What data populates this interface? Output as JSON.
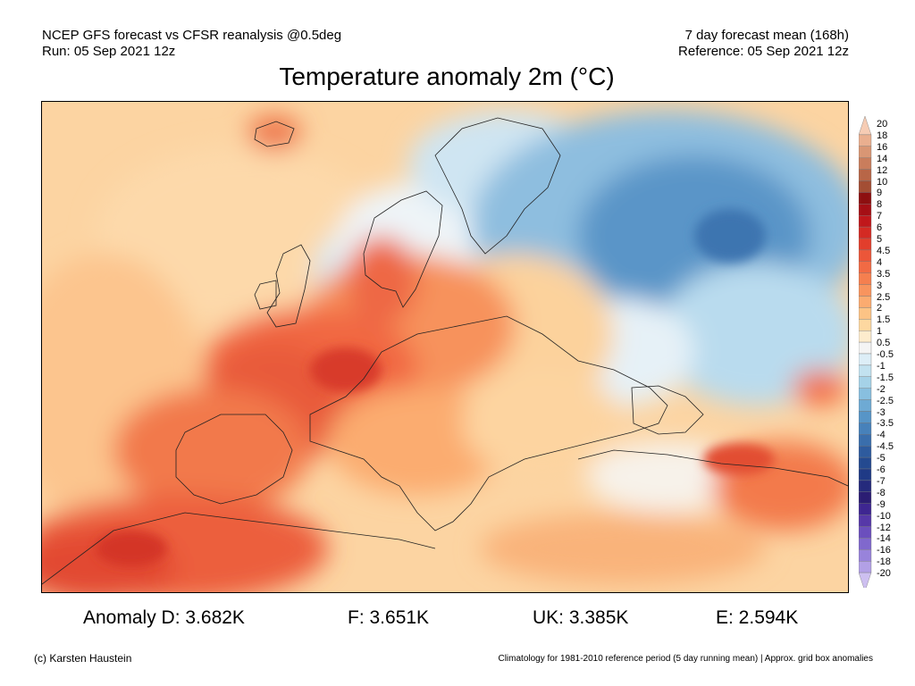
{
  "header": {
    "left_line1": "NCEP GFS forecast vs CFSR reanalysis @0.5deg",
    "left_line2": "Run: 05 Sep 2021 12z",
    "right_line1": "7 day forecast mean (168h)",
    "right_line2": "Reference: 05 Sep 2021 12z"
  },
  "title": "Temperature anomaly 2m (°C)",
  "colorbar": {
    "levels": [
      {
        "label": "20",
        "color": "#f6ccb4"
      },
      {
        "label": "18",
        "color": "#eaaf8f"
      },
      {
        "label": "16",
        "color": "#d99674"
      },
      {
        "label": "14",
        "color": "#c97d5c"
      },
      {
        "label": "12",
        "color": "#b86647"
      },
      {
        "label": "10",
        "color": "#a34e34"
      },
      {
        "label": "9",
        "color": "#8d0f10"
      },
      {
        "label": "8",
        "color": "#a50f15"
      },
      {
        "label": "7",
        "color": "#c0171b"
      },
      {
        "label": "6",
        "color": "#d42a23"
      },
      {
        "label": "5",
        "color": "#e23e2c"
      },
      {
        "label": "4.5",
        "color": "#ec5639"
      },
      {
        "label": "4",
        "color": "#f16a44"
      },
      {
        "label": "3.5",
        "color": "#f57f4f"
      },
      {
        "label": "3",
        "color": "#f8945e"
      },
      {
        "label": "2.5",
        "color": "#fbab70"
      },
      {
        "label": "2",
        "color": "#fcc385"
      },
      {
        "label": "1.5",
        "color": "#fdd8a0"
      },
      {
        "label": "1",
        "color": "#fdeccd"
      },
      {
        "label": "0.5",
        "color": "#f4f4f4"
      },
      {
        "label": "-0.5",
        "color": "#ddeef7"
      },
      {
        "label": "-1",
        "color": "#c2e2f0"
      },
      {
        "label": "-1.5",
        "color": "#a5d2e8"
      },
      {
        "label": "-2",
        "color": "#88bfdf"
      },
      {
        "label": "-2.5",
        "color": "#6eaad4"
      },
      {
        "label": "-3",
        "color": "#5795c7"
      },
      {
        "label": "-3.5",
        "color": "#4781ba"
      },
      {
        "label": "-4",
        "color": "#3a6eac"
      },
      {
        "label": "-4.5",
        "color": "#2e5b9e"
      },
      {
        "label": "-5",
        "color": "#244a90"
      },
      {
        "label": "-6",
        "color": "#1f3a86"
      },
      {
        "label": "-7",
        "color": "#252a7c"
      },
      {
        "label": "-8",
        "color": "#2b1d73"
      },
      {
        "label": "-9",
        "color": "#3e2691"
      },
      {
        "label": "-10",
        "color": "#5638a8"
      },
      {
        "label": "-12",
        "color": "#6b4fbd"
      },
      {
        "label": "-14",
        "color": "#8068cd"
      },
      {
        "label": "-16",
        "color": "#9883db"
      },
      {
        "label": "-18",
        "color": "#b2a0e6"
      },
      {
        "label": "-20",
        "color": "#cdbff0"
      }
    ]
  },
  "stats": {
    "d": "Anomaly D: 3.682K",
    "f": "F: 3.651K",
    "uk": "UK: 3.385K",
    "e": "E: 2.594K"
  },
  "footer": {
    "left": "(c) Karsten Haustein",
    "right": "Climatology for 1981-2010 reference period (5 day running mean) | Approx. grid box anomalies"
  },
  "colors": {
    "ocean_warm": "#fcd8a8",
    "land_hot": "#ee6a45",
    "cold_core": "#3f7fbf",
    "neutral": "#f4f4f4"
  }
}
